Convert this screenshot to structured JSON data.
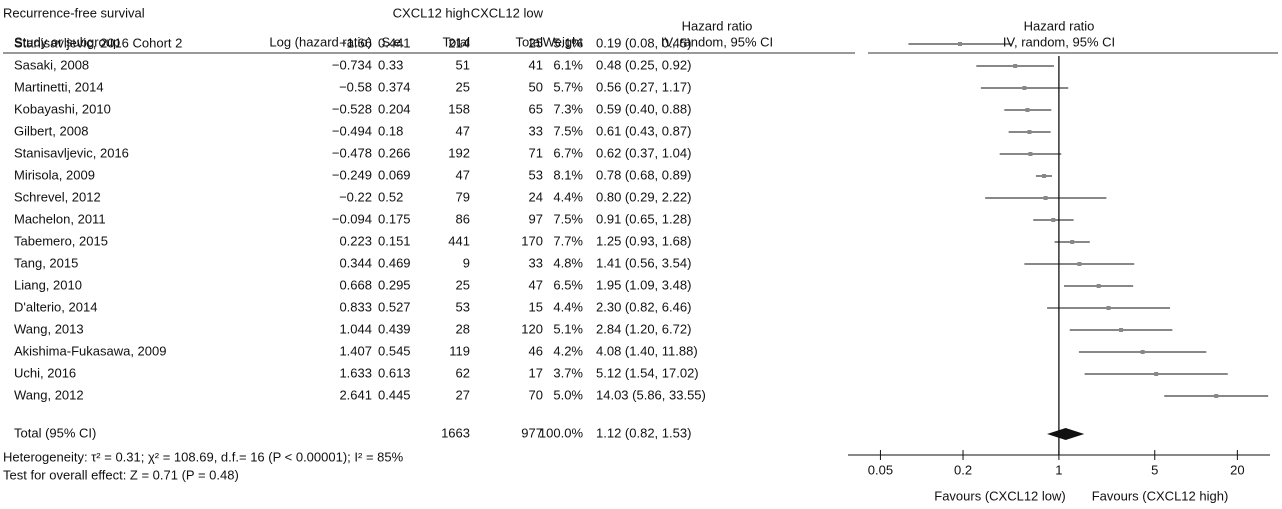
{
  "chart_data": {
    "type": "forest",
    "title": "Recurrence-free survival",
    "group_headers": [
      "CXCL12 high",
      "CXCL12 low"
    ],
    "column_headers": [
      "Study or subgroup",
      "Log (hazard ratio)",
      "S.e.",
      "Total",
      "Total",
      "Weight",
      "Hazard ratio",
      "IV, random, 95% CI"
    ],
    "plot_header": [
      "Hazard ratio",
      "IV, random, 95% CI"
    ],
    "categories": [
      "Stanisavljevic,  2016 Cohort 2",
      "Sasaki, 2008",
      "Martinetti, 2014",
      "Kobayashi, 2010",
      "Gilbert, 2008",
      "Stanisavljevic, 2016",
      "Mirisola, 2009",
      "Schrevel, 2012",
      "Machelon, 2011",
      "Tabemero, 2015",
      "Tang, 2015",
      "Liang, 2010",
      "D'alterio, 2014",
      "Wang, 2013",
      "Akishima-Fukasawa, 2009",
      "Uchi, 2016",
      "Wang, 2012"
    ],
    "log_hr": [
      "−1.66",
      "−0.734",
      "−0.58",
      "−0.528",
      "−0.494",
      "−0.478",
      "−0.249",
      "−0.22",
      "−0.094",
      "0.223",
      "0.344",
      "0.668",
      "0.833",
      "1.044",
      "1.407",
      "1.633",
      "2.641"
    ],
    "se": [
      0.441,
      0.33,
      0.374,
      0.204,
      0.18,
      0.266,
      0.069,
      0.52,
      0.175,
      0.151,
      0.469,
      0.295,
      0.527,
      0.439,
      0.545,
      0.613,
      0.445
    ],
    "high_total": [
      214,
      51,
      25,
      158,
      47,
      192,
      47,
      79,
      86,
      441,
      9,
      25,
      53,
      28,
      119,
      62,
      27
    ],
    "low_total": [
      25,
      41,
      50,
      65,
      33,
      71,
      53,
      24,
      97,
      170,
      33,
      47,
      15,
      120,
      46,
      17,
      70
    ],
    "weight": [
      "5.1%",
      "6.1%",
      "5.7%",
      "7.3%",
      "7.5%",
      "6.7%",
      "8.1%",
      "4.4%",
      "7.5%",
      "7.7%",
      "4.8%",
      "6.5%",
      "4.4%",
      "5.1%",
      "4.2%",
      "3.7%",
      "5.0%"
    ],
    "values": [
      0.19,
      0.48,
      0.56,
      0.59,
      0.61,
      0.62,
      0.78,
      0.8,
      0.91,
      1.25,
      1.41,
      1.95,
      2.3,
      2.84,
      4.08,
      5.12,
      14.03
    ],
    "lower": [
      0.08,
      0.25,
      0.27,
      0.4,
      0.43,
      0.37,
      0.68,
      0.29,
      0.65,
      0.93,
      0.56,
      1.09,
      0.82,
      1.2,
      1.4,
      1.54,
      5.86
    ],
    "upper": [
      0.45,
      0.92,
      1.17,
      0.88,
      0.87,
      1.04,
      0.89,
      2.22,
      1.28,
      1.68,
      3.54,
      3.48,
      6.46,
      6.72,
      11.88,
      17.02,
      33.55
    ],
    "value_labels": [
      "0.19 (0.08, 0.45)",
      "0.48 (0.25, 0.92)",
      "0.56 (0.27, 1.17)",
      "0.59 (0.40, 0.88)",
      "0.61 (0.43, 0.87)",
      "0.62 (0.37, 1.04)",
      "0.78 (0.68, 0.89)",
      "0.80 (0.29, 2.22)",
      "0.91 (0.65, 1.28)",
      "1.25 (0.93, 1.68)",
      "1.41 (0.56, 3.54)",
      "1.95 (1.09, 3.48)",
      "2.30 (0.82, 6.46)",
      "2.84 (1.20, 6.72)",
      "4.08 (1.40, 11.88)",
      "5.12 (1.54, 17.02)",
      "14.03 (5.86, 33.55)"
    ],
    "total": {
      "label": "Total (95% CI)",
      "high_total": 1663,
      "low_total": 977,
      "weight": "100.0%",
      "value": 1.12,
      "lower": 0.82,
      "upper": 1.53,
      "value_label": "1.12 (0.82, 1.53)"
    },
    "notes": [
      "Heterogeneity: τ² = 0.31; χ² = 108.69, d.f.= 16 (P < 0.00001); I² = 85%",
      "Test for overall effect: Z = 0.71 (P = 0.48)"
    ],
    "x_labels": [
      "Favours (CXCL12 low)",
      "Favours (CXCL12 high)"
    ],
    "log_x": true,
    "xlim": [
      0.029,
      34.6
    ],
    "xticks": [
      0.05,
      0.2,
      1,
      5,
      20
    ],
    "color": "#111111"
  }
}
